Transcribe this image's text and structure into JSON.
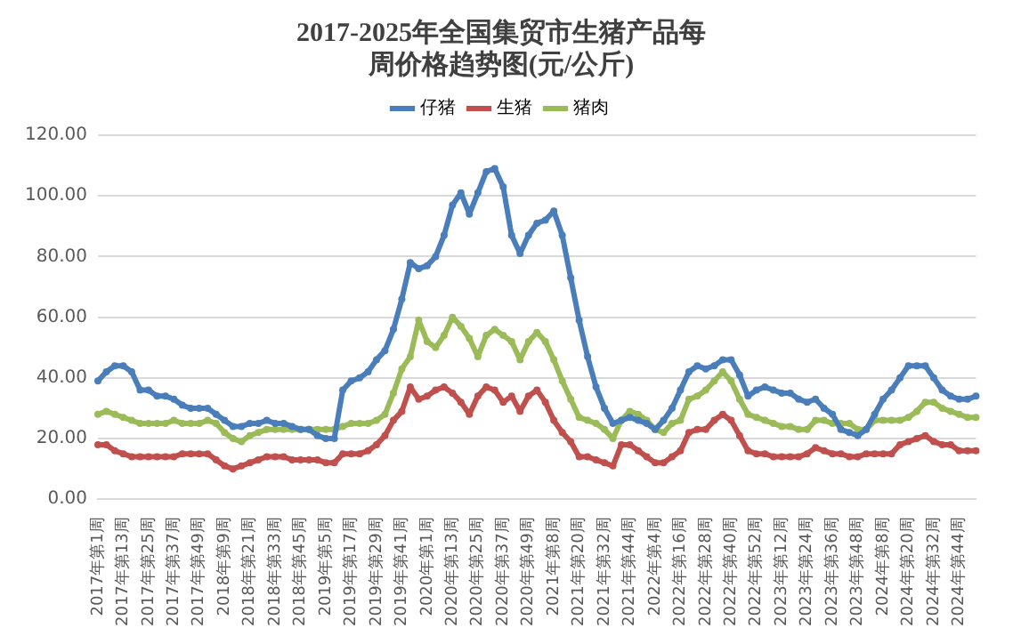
{
  "chart_data": {
    "type": "line",
    "title": "2017-2025年全国集贸市生猪产品每周价格趋势图(元/公斤)",
    "categories": [
      "2017年第1周",
      null,
      null,
      "2017年第13周",
      null,
      null,
      "2017年第25周",
      null,
      null,
      "2017年第37周",
      null,
      null,
      "2017年第49周",
      null,
      null,
      "2018年第9周",
      null,
      null,
      "2018年第21周",
      null,
      null,
      "2018年第33周",
      null,
      null,
      "2018年第45周",
      null,
      null,
      "2019年第5周",
      null,
      null,
      "2019年第17周",
      null,
      null,
      "2019年第29周",
      null,
      null,
      "2019年第41周",
      null,
      null,
      "2020年第1周",
      null,
      null,
      "2020年第13周",
      null,
      null,
      "2020年第25周",
      null,
      null,
      "2020年第37周",
      null,
      null,
      "2020年第49周",
      null,
      null,
      "2021年第8周",
      null,
      null,
      "2021年第20周",
      null,
      null,
      "2021年第32周",
      null,
      null,
      "2021年第44周",
      null,
      null,
      "2022年第4周",
      null,
      null,
      "2022年第16周",
      null,
      null,
      "2022年第28周",
      null,
      null,
      "2022年第40周",
      null,
      null,
      "2022年第52周",
      null,
      null,
      "2023年第12周",
      null,
      null,
      "2023年第24周",
      null,
      null,
      "2023年第36周",
      null,
      null,
      "2023年第48周",
      null,
      null,
      "2024年第8周",
      null,
      null,
      "2024年第20周",
      null,
      null,
      "2024年第32周",
      null,
      null,
      "2024年第44周",
      null,
      null
    ],
    "series": [
      {
        "name": "仔猪",
        "color": "#4a7ebb",
        "values": [
          39,
          42,
          44,
          44,
          42,
          36,
          36,
          34,
          34,
          33,
          31,
          30,
          30,
          30,
          28,
          26,
          24,
          24,
          25,
          25,
          26,
          25,
          25,
          24,
          23,
          23,
          21,
          20,
          20,
          36,
          39,
          40,
          42,
          46,
          49,
          56,
          66,
          78,
          76,
          77,
          80,
          87,
          97,
          101,
          94,
          101,
          108,
          109,
          103,
          87,
          81,
          87,
          91,
          92,
          95,
          87,
          73,
          59,
          47,
          37,
          30,
          25,
          26,
          27,
          26,
          25,
          23,
          26,
          30,
          36,
          42,
          44,
          43,
          44,
          46,
          46,
          41,
          34,
          36,
          37,
          36,
          35,
          35,
          33,
          32,
          33,
          30,
          28,
          23,
          22,
          21,
          23,
          28,
          33,
          36,
          40,
          44,
          44,
          44,
          40,
          36,
          34,
          33,
          33,
          34
        ]
      },
      {
        "name": "生猪",
        "color": "#c0504d",
        "values": [
          18,
          18,
          16,
          15,
          14,
          14,
          14,
          14,
          14,
          14,
          15,
          15,
          15,
          15,
          13,
          11,
          10,
          11,
          12,
          13,
          14,
          14,
          14,
          13,
          13,
          13,
          13,
          12,
          12,
          15,
          15,
          15,
          16,
          18,
          21,
          26,
          29,
          37,
          33,
          34,
          36,
          37,
          35,
          32,
          28,
          34,
          37,
          36,
          32,
          34,
          29,
          34,
          36,
          32,
          26,
          22,
          19,
          14,
          14,
          13,
          12,
          11,
          18,
          18,
          16,
          14,
          12,
          12,
          14,
          16,
          22,
          23,
          23,
          26,
          28,
          26,
          21,
          16,
          15,
          15,
          14,
          14,
          14,
          14,
          15,
          17,
          16,
          15,
          15,
          14,
          14,
          15,
          15,
          15,
          15,
          18,
          19,
          20,
          21,
          19,
          18,
          18,
          16,
          16,
          16
        ]
      },
      {
        "name": "猪肉",
        "color": "#9bbb59",
        "values": [
          28,
          29,
          28,
          27,
          26,
          25,
          25,
          25,
          25,
          26,
          25,
          25,
          25,
          26,
          25,
          22,
          20,
          19,
          21,
          22,
          23,
          23,
          23,
          23,
          23,
          23,
          23,
          23,
          23,
          24,
          25,
          25,
          25,
          26,
          28,
          35,
          43,
          47,
          59,
          52,
          50,
          54,
          60,
          57,
          53,
          47,
          54,
          56,
          54,
          52,
          46,
          52,
          55,
          52,
          46,
          39,
          33,
          27,
          26,
          25,
          23,
          20,
          26,
          29,
          28,
          26,
          23,
          22,
          25,
          26,
          33,
          34,
          36,
          39,
          42,
          39,
          33,
          28,
          27,
          26,
          25,
          24,
          24,
          23,
          23,
          26,
          26,
          25,
          25,
          25,
          23,
          23,
          26,
          26,
          26,
          26,
          27,
          29,
          32,
          32,
          30,
          29,
          28,
          27,
          27
        ]
      }
    ],
    "ylim": [
      0,
      120
    ],
    "yticks": [
      {
        "value": 0,
        "label": "0.00"
      },
      {
        "value": 20,
        "label": "20.00"
      },
      {
        "value": 40,
        "label": "40.00"
      },
      {
        "value": 60,
        "label": "60.00"
      },
      {
        "value": 80,
        "label": "80.00"
      },
      {
        "value": 100,
        "label": "100.00"
      },
      {
        "value": 120,
        "label": "120.00"
      }
    ],
    "grid": "y",
    "legend": "top",
    "marker": "circle",
    "line_style": "solid"
  }
}
